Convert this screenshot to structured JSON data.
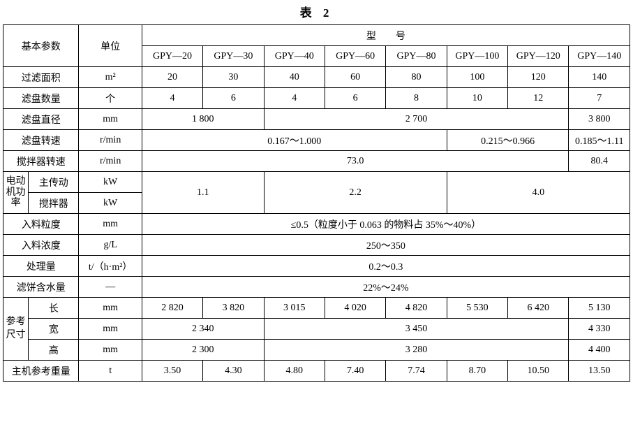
{
  "title": "表 2",
  "header": {
    "param": "基本参数",
    "unit": "单位",
    "model": "型　　号",
    "models": [
      "GPY—20",
      "GPY—30",
      "GPY—40",
      "GPY—60",
      "GPY—80",
      "GPY—100",
      "GPY—120",
      "GPY—140"
    ]
  },
  "rows": {
    "filter_area": {
      "label": "过滤面积",
      "unit": "m²",
      "vals": [
        "20",
        "30",
        "40",
        "60",
        "80",
        "100",
        "120",
        "140"
      ]
    },
    "disk_count": {
      "label": "滤盘数量",
      "unit": "个",
      "vals": [
        "4",
        "6",
        "4",
        "6",
        "8",
        "10",
        "12",
        "7"
      ]
    },
    "disk_diameter": {
      "label": "滤盘直径",
      "unit": "mm",
      "span2": "1 800",
      "span5": "2 700",
      "last": "3 800"
    },
    "disk_speed": {
      "label": "滤盘转速",
      "unit": "r/min",
      "span5": "0.167～1.000",
      "span2": "0.215～0.966",
      "last": "0.185～1.11"
    },
    "agitator_speed": {
      "label": "搅拌器转速",
      "unit": "r/min",
      "span7": "73.0",
      "last": "80.4"
    },
    "motor": {
      "group": "电动机功率",
      "main": {
        "label": "主传动",
        "unit": "kW"
      },
      "agitator": {
        "label": "搅拌器",
        "unit": "kW"
      },
      "vals": {
        "a": "1.1",
        "b": "2.2",
        "c": "4.0"
      }
    },
    "feed_size": {
      "label": "入料粒度",
      "unit": "mm",
      "val": "≤0.5（粒度小于 0.063 的物料占 35%～40%）"
    },
    "feed_conc": {
      "label": "入料浓度",
      "unit": "g/L",
      "val": "250～350"
    },
    "capacity": {
      "label": "处理量",
      "unit": "t/（h·m²）",
      "val": "0.2～0.3"
    },
    "cake_moisture": {
      "label": "滤饼含水量",
      "unit": "—",
      "val": "22%～24%"
    },
    "dim": {
      "group": "参考尺寸",
      "length": {
        "label": "长",
        "unit": "mm",
        "vals": [
          "2 820",
          "3 820",
          "3 015",
          "4 020",
          "4 820",
          "5 530",
          "6 420",
          "5 130"
        ]
      },
      "width": {
        "label": "宽",
        "unit": "mm",
        "span2": "2 340",
        "span5": "3 450",
        "last": "4 330"
      },
      "height": {
        "label": "高",
        "unit": "mm",
        "span2": "2 300",
        "span5": "3 280",
        "last": "4 400"
      }
    },
    "weight": {
      "label": "主机参考重量",
      "unit": "t",
      "vals": [
        "3.50",
        "4.30",
        "4.80",
        "7.40",
        "7.74",
        "8.70",
        "10.50",
        "13.50"
      ]
    }
  }
}
